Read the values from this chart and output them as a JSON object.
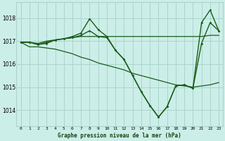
{
  "title": "Graphe pression niveau de la mer (hPa)",
  "bg_color": "#cceee8",
  "grid_color": "#aad4cc",
  "line_color": "#1a5c1a",
  "x_ticks": [
    0,
    1,
    2,
    3,
    4,
    5,
    6,
    7,
    8,
    9,
    10,
    11,
    12,
    13,
    14,
    15,
    16,
    17,
    18,
    19,
    20,
    21,
    22,
    23
  ],
  "y_ticks": [
    1014,
    1015,
    1016,
    1017,
    1018
  ],
  "ylim": [
    1013.3,
    1018.7
  ],
  "xlim": [
    -0.5,
    23.5
  ],
  "series": [
    {
      "x": [
        0,
        1,
        2,
        3,
        4,
        5,
        6,
        7,
        8,
        9,
        10,
        11,
        12,
        13,
        14,
        15,
        16,
        17,
        18,
        19,
        20,
        21,
        22,
        23
      ],
      "y": [
        1016.95,
        1016.95,
        1016.9,
        1017.0,
        1017.05,
        1017.1,
        1017.15,
        1017.2,
        1017.2,
        1017.2,
        1017.2,
        1017.2,
        1017.2,
        1017.2,
        1017.2,
        1017.2,
        1017.2,
        1017.2,
        1017.2,
        1017.2,
        1017.2,
        1017.2,
        1017.25,
        1017.25
      ],
      "marker": false,
      "linewidth": 0.9
    },
    {
      "x": [
        0,
        1,
        2,
        3,
        4,
        5,
        6,
        7,
        8,
        9,
        10,
        11,
        12,
        13,
        14,
        15,
        16,
        17,
        18,
        19,
        20,
        21,
        22,
        23
      ],
      "y": [
        1016.95,
        1016.75,
        1016.75,
        1016.7,
        1016.65,
        1016.55,
        1016.45,
        1016.3,
        1016.2,
        1016.05,
        1015.95,
        1015.85,
        1015.75,
        1015.6,
        1015.5,
        1015.4,
        1015.3,
        1015.2,
        1015.1,
        1015.05,
        1015.0,
        1015.05,
        1015.1,
        1015.2
      ],
      "marker": false,
      "linewidth": 0.9
    },
    {
      "x": [
        0,
        1,
        2,
        3,
        4,
        5,
        6,
        7,
        8,
        9,
        10,
        11,
        12,
        13,
        14,
        15,
        16,
        17,
        18,
        19,
        20,
        21,
        22,
        23
      ],
      "y": [
        1016.95,
        1016.95,
        1016.85,
        1016.95,
        1017.05,
        1017.1,
        1017.2,
        1017.35,
        1017.97,
        1017.5,
        1017.2,
        1016.6,
        1016.2,
        1015.5,
        1014.8,
        1014.2,
        1013.7,
        1014.15,
        1015.05,
        1015.1,
        1014.95,
        1017.8,
        1018.35,
        1017.45
      ],
      "marker": true,
      "linewidth": 1.0
    },
    {
      "x": [
        0,
        1,
        2,
        3,
        4,
        5,
        6,
        7,
        8,
        9,
        10,
        11,
        12,
        13,
        14,
        15,
        16,
        17,
        18,
        19,
        20,
        21,
        22,
        23
      ],
      "y": [
        1016.95,
        1016.95,
        1016.85,
        1016.9,
        1017.05,
        1017.1,
        1017.15,
        1017.25,
        1017.45,
        1017.2,
        1017.15,
        1016.6,
        1016.2,
        1015.5,
        1014.8,
        1014.2,
        1013.7,
        1014.15,
        1015.05,
        1015.1,
        1014.95,
        1016.9,
        1017.8,
        1017.45
      ],
      "marker": true,
      "linewidth": 1.0
    }
  ]
}
